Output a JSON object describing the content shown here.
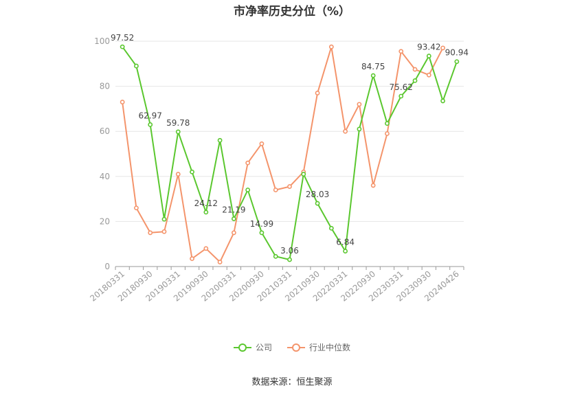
{
  "chart_data": {
    "type": "line",
    "title": "市净率历史分位（%）",
    "ylim": [
      0,
      100
    ],
    "yticks": [
      "0",
      "20",
      "40",
      "60",
      "80",
      "100"
    ],
    "x": [
      "20180331",
      "",
      "20180930",
      "",
      "20190331",
      "",
      "20190930",
      "",
      "20200331",
      "",
      "20200930",
      "",
      "20210331",
      "",
      "20210930",
      "",
      "20220331",
      "",
      "20220930",
      "",
      "20230331",
      "",
      "20230930",
      "",
      "20240426"
    ],
    "series": [
      {
        "name": "公司",
        "color": "#5ac72e",
        "values": [
          97.52,
          89,
          62.97,
          21,
          59.78,
          42,
          24.12,
          56,
          21.19,
          34,
          14.99,
          4.5,
          3.06,
          41,
          28.03,
          17,
          6.84,
          61,
          84.75,
          63.5,
          75.62,
          82.5,
          93.42,
          73.5,
          90.94
        ]
      },
      {
        "name": "行业中位数",
        "color": "#f4946b",
        "values": [
          73,
          26,
          15,
          15.5,
          41,
          3.5,
          8,
          2,
          15,
          46,
          54.5,
          34,
          35.5,
          42,
          77,
          97.5,
          60,
          72,
          36,
          59,
          95.5,
          87.5,
          85,
          97,
          null
        ]
      }
    ],
    "data_labels": [
      {
        "index": 0,
        "text": "97.52"
      },
      {
        "index": 2,
        "text": "62.97"
      },
      {
        "index": 4,
        "text": "59.78"
      },
      {
        "index": 6,
        "text": "24.12"
      },
      {
        "index": 8,
        "text": "21.19"
      },
      {
        "index": 10,
        "text": "14.99"
      },
      {
        "index": 12,
        "text": "3.06"
      },
      {
        "index": 14,
        "text": "28.03"
      },
      {
        "index": 16,
        "text": "6.84"
      },
      {
        "index": 18,
        "text": "84.75"
      },
      {
        "index": 20,
        "text": "75.62"
      },
      {
        "index": 22,
        "text": "93.42"
      },
      {
        "index": 24,
        "text": "90.94"
      }
    ],
    "grid": true,
    "legend_position": "bottom"
  },
  "legend": {
    "company_label": "公司",
    "industry_label": "行业中位数"
  },
  "source_note": "数据来源：恒生聚源"
}
